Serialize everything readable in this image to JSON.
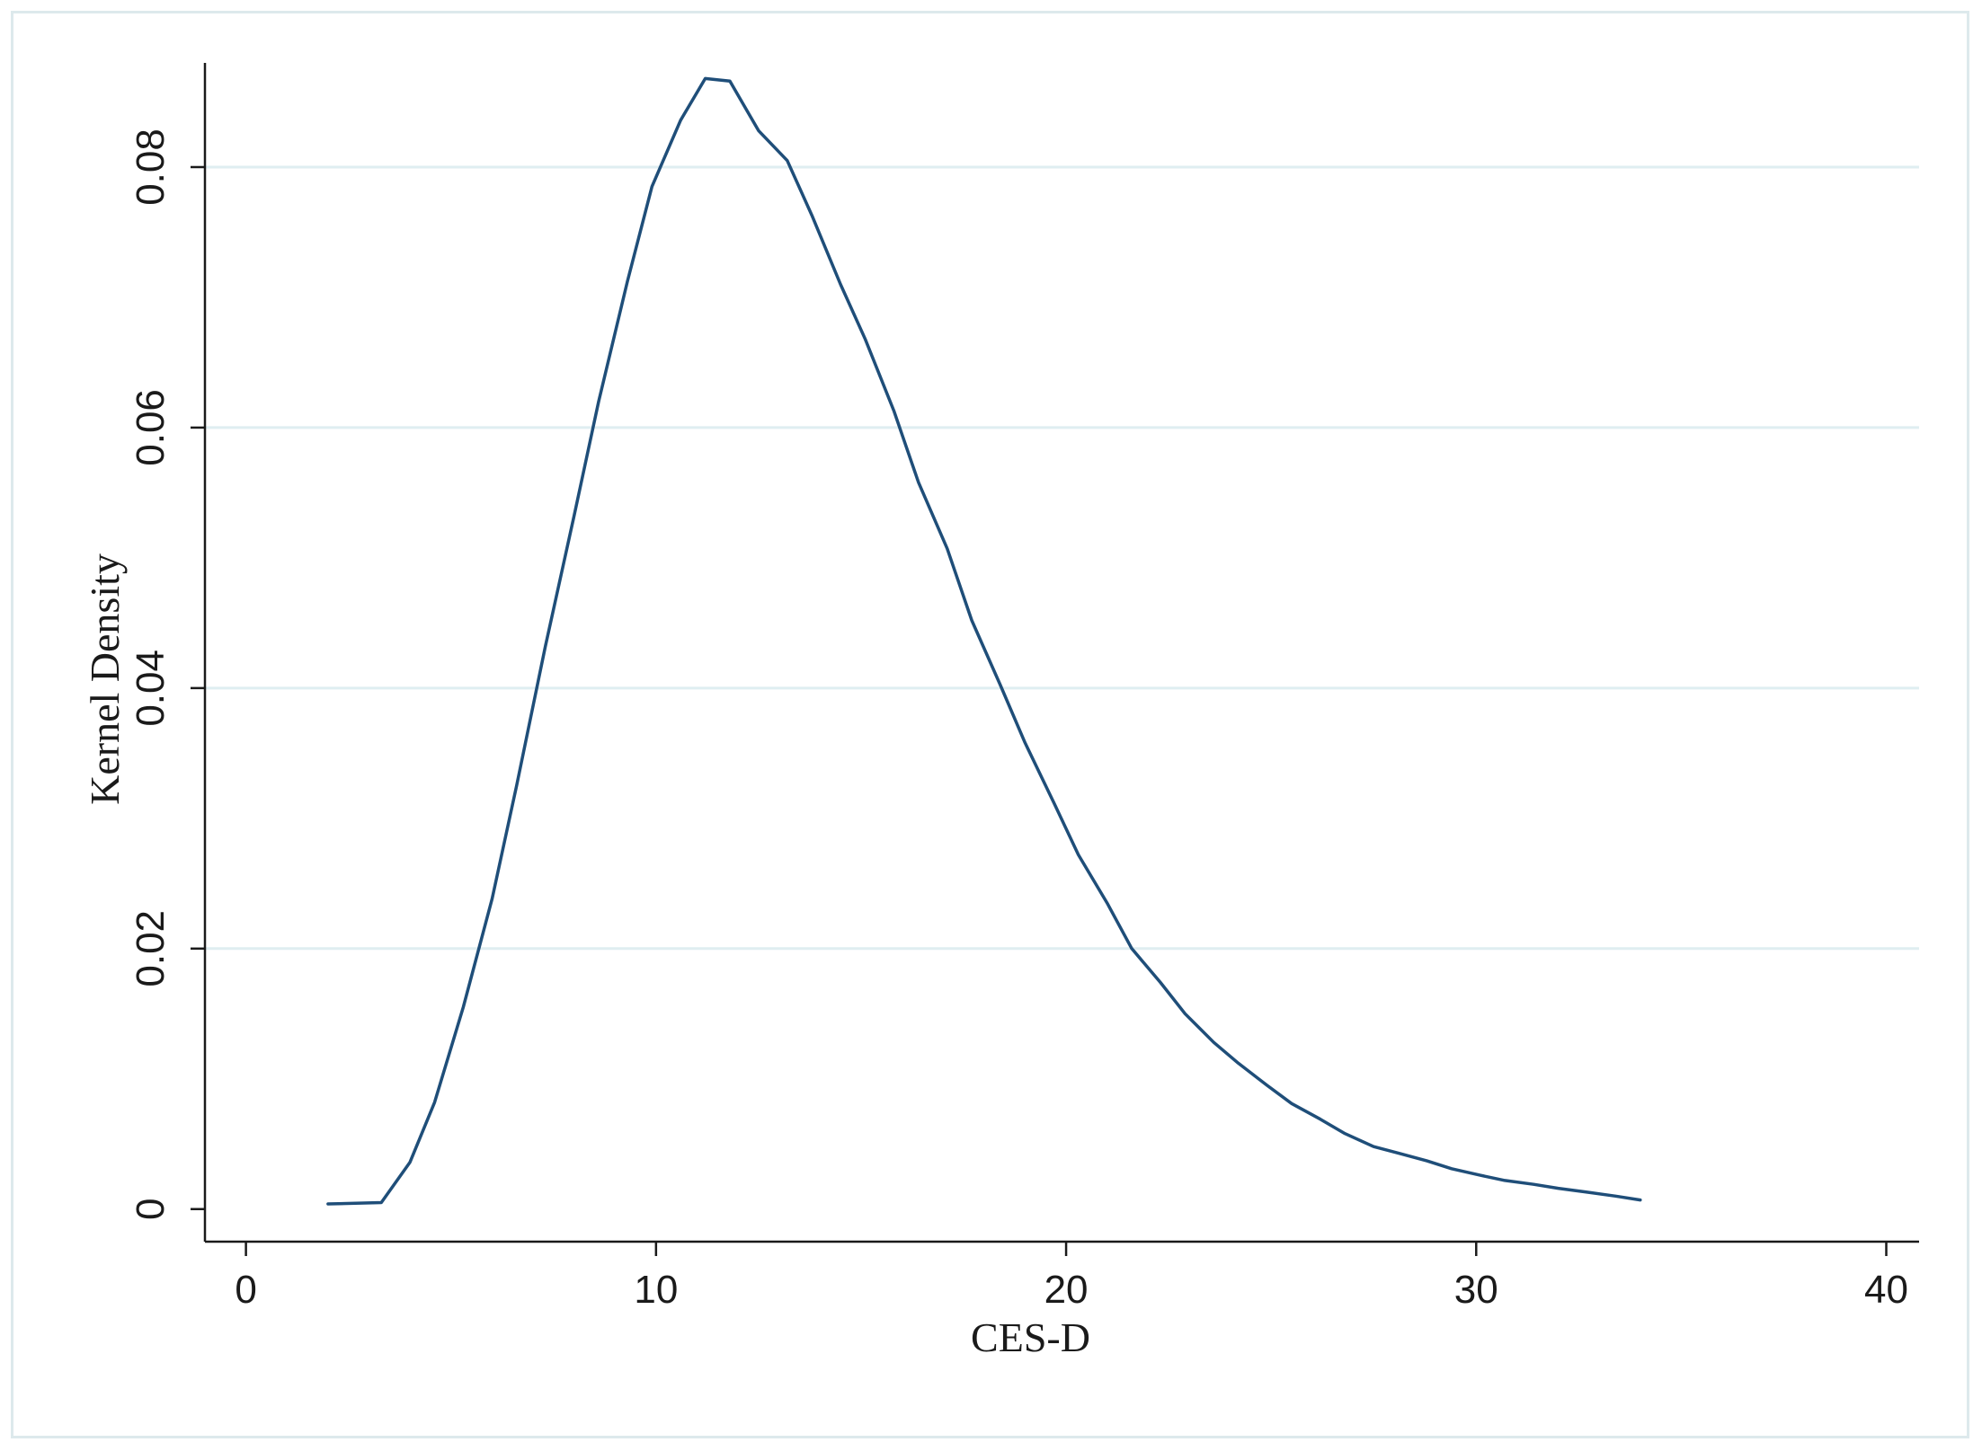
{
  "chart_data": {
    "type": "line",
    "title": "",
    "xlabel": "CES-D",
    "ylabel": "Kernel Density",
    "xlim": [
      -1,
      40.8
    ],
    "ylim": [
      -0.0025,
      0.088
    ],
    "xticks": [
      0,
      10,
      20,
      30,
      40
    ],
    "xtick_labels": [
      "0",
      "10",
      "20",
      "30",
      "40"
    ],
    "yticks": [
      0,
      0.02,
      0.04,
      0.06,
      0.08
    ],
    "ytick_labels": [
      "0",
      "0.02",
      "0.04",
      "0.06",
      "0.08"
    ],
    "grid": true,
    "legend": "none",
    "colors": {
      "line": "#1f4e79",
      "grid": "#dfeef1",
      "axis": "#1a1a1a",
      "frame": "#dde9ec"
    },
    "series": [
      {
        "x": [
          2.0,
          3.3,
          4.0,
          4.6,
          5.3,
          6.0,
          6.6,
          7.3,
          8.0,
          8.6,
          9.3,
          9.9,
          10.6,
          11.2,
          11.8,
          12.5,
          13.2,
          13.8,
          14.5,
          15.1,
          15.8,
          16.4,
          17.1,
          17.7,
          18.4,
          19.0,
          19.7,
          20.3,
          21.0,
          21.6,
          22.3,
          22.9,
          23.6,
          24.2,
          24.9,
          25.5,
          26.2,
          26.8,
          27.5,
          28.1,
          28.8,
          29.4,
          30.1,
          30.7,
          31.4,
          32.0,
          32.7,
          33.4,
          34.0
        ],
        "y": [
          0.0004,
          0.0005,
          0.0036,
          0.0082,
          0.0155,
          0.0238,
          0.0325,
          0.0432,
          0.0532,
          0.062,
          0.0712,
          0.0785,
          0.0836,
          0.0868,
          0.0866,
          0.0828,
          0.0805,
          0.0763,
          0.071,
          0.0668,
          0.0613,
          0.0558,
          0.0507,
          0.0452,
          0.0402,
          0.0358,
          0.0312,
          0.0272,
          0.0235,
          0.02,
          0.0174,
          0.015,
          0.0128,
          0.0112,
          0.0095,
          0.0081,
          0.0069,
          0.0058,
          0.0048,
          0.0043,
          0.0037,
          0.0031,
          0.0026,
          0.0022,
          0.0019,
          0.0016,
          0.0013,
          0.001,
          0.0007
        ]
      }
    ]
  }
}
